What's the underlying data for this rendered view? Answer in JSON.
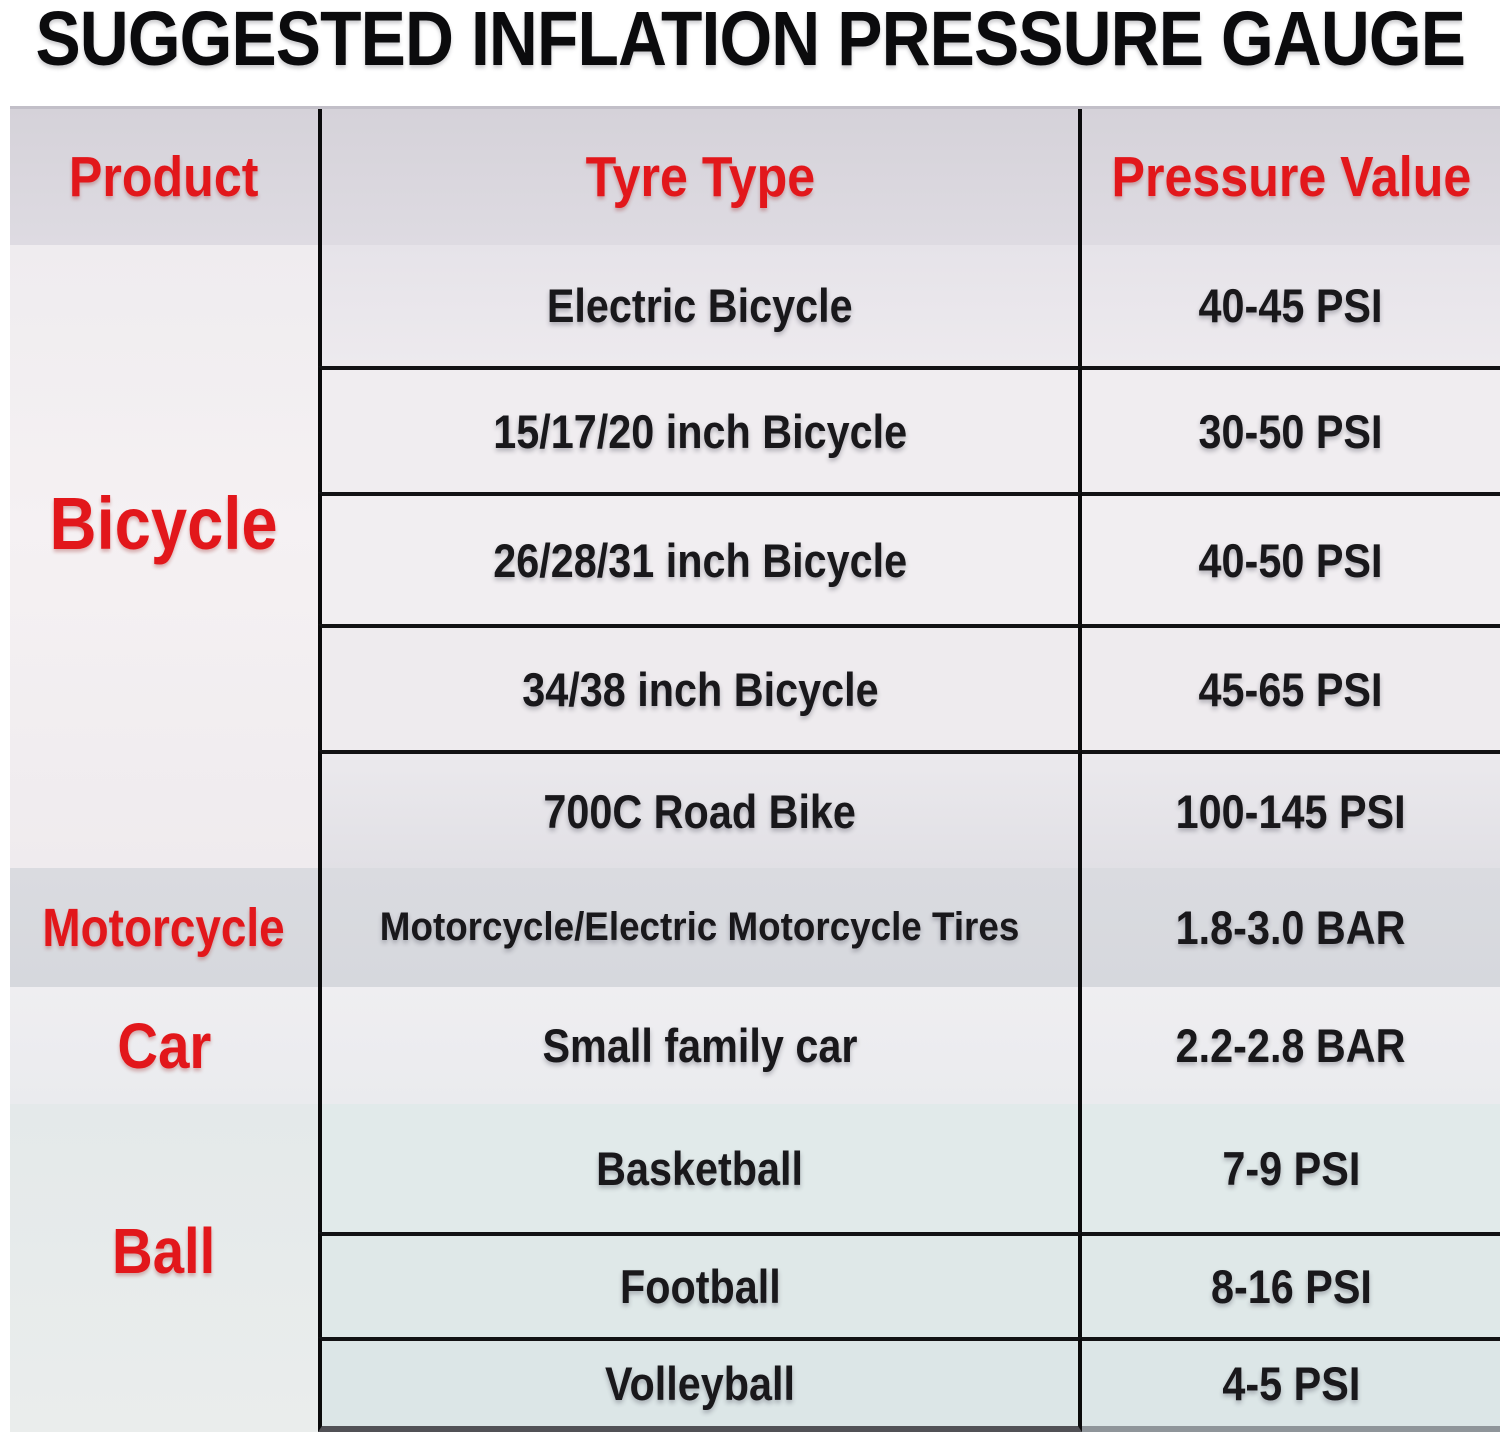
{
  "title": "SUGGESTED INFLATION PRESSURE GAUGE",
  "colors": {
    "header_text": "#e2171b",
    "product_text": "#e2171b",
    "body_text": "#19181b",
    "grid_line": "#0a0a0b"
  },
  "table": {
    "headers": [
      "Product",
      "Tyre Type",
      "Pressure Value"
    ],
    "sections": [
      {
        "product": "Bicycle",
        "rows": [
          {
            "type": "Electric Bicycle",
            "value": "40-45 PSI"
          },
          {
            "type": "15/17/20 inch Bicycle",
            "value": "30-50 PSI"
          },
          {
            "type": "26/28/31 inch Bicycle",
            "value": "40-50 PSI"
          },
          {
            "type": "34/38 inch Bicycle",
            "value": "45-65 PSI"
          },
          {
            "type": "700C Road Bike",
            "value": "100-145 PSI"
          }
        ]
      },
      {
        "product": "Motorcycle",
        "rows": [
          {
            "type": "Motorcycle/Electric Motorcycle Tires",
            "value": "1.8-3.0 BAR"
          }
        ]
      },
      {
        "product": "Car",
        "rows": [
          {
            "type": "Small family car",
            "value": "2.2-2.8 BAR"
          }
        ]
      },
      {
        "product": "Ball",
        "rows": [
          {
            "type": "Basketball",
            "value": "7-9 PSI"
          },
          {
            "type": "Football",
            "value": "8-16 PSI"
          },
          {
            "type": "Volleyball",
            "value": "4-5 PSI"
          }
        ]
      }
    ]
  }
}
